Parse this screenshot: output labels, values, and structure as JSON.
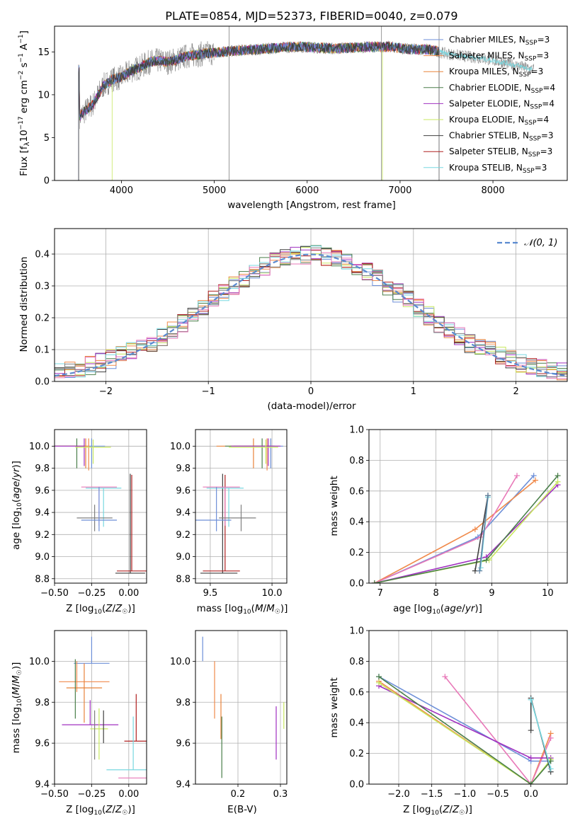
{
  "chart_data": [
    {
      "type": "line",
      "title": "PLATE=0854, MJD=52373, FIBERID=0040, z=0.079",
      "xlabel": "wavelength [Angstrom, rest frame]",
      "ylabel": "Flux [f_λ 10^-17 erg cm^-2 s^-1 A^-1]",
      "xlim": [
        3280,
        8800
      ],
      "ylim": [
        0,
        18
      ],
      "xticks": [
        "4000",
        "5000",
        "6000",
        "7000",
        "8000"
      ],
      "yticks": [
        "0",
        "5",
        "10",
        "15"
      ],
      "legend_position": "right",
      "series": [
        {
          "name": "Chabrier MILES, N_SSP=3"
        },
        {
          "name": "Salpeter MILES, N_SSP=3"
        },
        {
          "name": "Kroupa MILES, N_SSP=3"
        },
        {
          "name": "Chabrier ELODIE, N_SSP=4"
        },
        {
          "name": "Salpeter ELODIE, N_SSP=4"
        },
        {
          "name": "Kroupa ELODIE, N_SSP=4"
        },
        {
          "name": "Chabrier STELIB, N_SSP=3"
        },
        {
          "name": "Salpeter STELIB, N_SSP=3"
        },
        {
          "name": "Kroupa STELIB, N_SSP=3"
        }
      ],
      "spectrum_envelope": {
        "x": [
          3550,
          3700,
          3800,
          3900,
          4000,
          4100,
          4200,
          4300,
          4400,
          4500,
          4700,
          4900,
          5100,
          5300,
          5500,
          5700,
          5900,
          6100,
          6300,
          6500,
          6700,
          6900,
          7100,
          7300,
          7500,
          7700,
          7900,
          8100,
          8300,
          8400
        ],
        "y": [
          7.5,
          9.0,
          11.0,
          11.8,
          12.0,
          12.8,
          13.2,
          13.8,
          14.0,
          13.8,
          14.5,
          14.8,
          15.0,
          15.2,
          15.3,
          15.5,
          15.6,
          15.5,
          15.4,
          15.5,
          15.6,
          15.6,
          15.3,
          15.3,
          14.8,
          14.5,
          14.2,
          13.8,
          13.3,
          13.0
        ]
      }
    },
    {
      "type": "line",
      "xlabel": "(data-model)/error",
      "ylabel": "Normed distribution",
      "xlim": [
        -2.5,
        2.5
      ],
      "ylim": [
        0,
        0.48
      ],
      "xticks": [
        "−2",
        "−1",
        "0",
        "1",
        "2"
      ],
      "yticks": [
        "0.0",
        "0.1",
        "0.2",
        "0.3",
        "0.4"
      ],
      "legend": [
        "𝒩(0, 1)"
      ],
      "legend_position": "top-right",
      "histogram_bin_width": 0.1
    },
    {
      "type": "scatter",
      "xlabel": "Z [log10(Z/Z☉)]",
      "ylabel": "age [log10(age/yr)]",
      "xlim": [
        -0.5,
        0.12
      ],
      "ylim": [
        8.76,
        10.15
      ],
      "xticks": [
        "−0.50",
        "−0.25",
        "0.00"
      ],
      "yticks": [
        "8.8",
        "9.0",
        "9.2",
        "9.4",
        "9.6",
        "9.8",
        "10.0"
      ],
      "points": [
        {
          "x": -0.25,
          "y": 10.0,
          "xerr": [
            0.47,
            0.09
          ],
          "yerr": [
            0.2,
            0.07
          ]
        },
        {
          "x": -0.27,
          "y": 10.0,
          "xerr": [
            0.5,
            0.0
          ],
          "yerr": [
            0.22,
            0.07
          ]
        },
        {
          "x": -0.29,
          "y": 10.0,
          "xerr": [
            0.5,
            0.0
          ],
          "yerr": [
            0.2,
            0.07
          ]
        },
        {
          "x": -0.35,
          "y": 10.0,
          "xerr": [
            0.5,
            0.0
          ],
          "yerr": [
            0.2,
            0.07
          ]
        },
        {
          "x": -0.3,
          "y": 10.0,
          "xerr": [
            0.5,
            0.0
          ],
          "yerr": [
            0.18,
            0.07
          ]
        },
        {
          "x": -0.24,
          "y": 9.99,
          "xerr": [
            0.12,
            0.12
          ],
          "yerr": [
            0.15,
            0.07
          ]
        },
        {
          "x": 0.01,
          "y": 8.85,
          "xerr": [
            0.1,
            0.1
          ],
          "yerr": [
            0.0,
            0.9
          ]
        },
        {
          "x": 0.02,
          "y": 8.87,
          "xerr": [
            0.1,
            0.1
          ],
          "yerr": [
            0.0,
            0.87
          ]
        },
        {
          "x": -0.17,
          "y": 9.62,
          "xerr": [
            0.12,
            0.12
          ],
          "yerr": [
            0.35,
            0.0
          ]
        },
        {
          "x": -0.2,
          "y": 9.63,
          "xerr": [
            0.12,
            0.12
          ],
          "yerr": [
            0.35,
            0.0
          ]
        },
        {
          "x": -0.23,
          "y": 9.35,
          "xerr": [
            0.12,
            0.12
          ],
          "yerr": [
            0.12,
            0.12
          ]
        },
        {
          "x": -0.2,
          "y": 9.33,
          "xerr": [
            0.12,
            0.12
          ],
          "yerr": [
            0.1,
            0.3
          ]
        }
      ]
    },
    {
      "type": "scatter",
      "xlabel": "mass [log10(M/M☉)]",
      "ylabel": "",
      "xlim": [
        9.38,
        10.12
      ],
      "ylim": [
        8.76,
        10.15
      ],
      "xticks": [
        "9.5",
        "10.0"
      ],
      "yticks": [
        "8.8",
        "9.0",
        "9.2",
        "9.4",
        "9.6",
        "9.8",
        "10.0"
      ]
    },
    {
      "type": "line",
      "xlabel": "age [log10(age/yr)]",
      "ylabel": "mass weight",
      "xlim": [
        6.8,
        10.35
      ],
      "ylim": [
        0,
        1.0
      ],
      "xticks": [
        "7",
        "8",
        "9",
        "10"
      ],
      "yticks": [
        "0.0",
        "0.2",
        "0.4",
        "0.6",
        "0.8",
        "1.0"
      ],
      "series": [
        {
          "x": [
            6.9,
            8.75,
            9.75
          ],
          "y": [
            0.0,
            0.3,
            0.7
          ]
        },
        {
          "x": [
            6.9,
            8.7,
            9.78
          ],
          "y": [
            0.0,
            0.35,
            0.67
          ]
        },
        {
          "x": [
            6.9,
            8.8,
            9.45
          ],
          "y": [
            0.0,
            0.3,
            0.7
          ]
        },
        {
          "x": [
            6.9,
            8.9,
            10.18
          ],
          "y": [
            0.0,
            0.17,
            0.64
          ]
        },
        {
          "x": [
            6.9,
            8.95,
            10.18
          ],
          "y": [
            0.0,
            0.15,
            0.66
          ]
        },
        {
          "x": [
            6.9,
            8.9,
            10.18
          ],
          "y": [
            0.0,
            0.15,
            0.7
          ]
        },
        {
          "x": [
            8.7,
            8.93
          ],
          "y": [
            0.08,
            0.57
          ]
        },
        {
          "x": [
            8.8,
            8.93
          ],
          "y": [
            0.1,
            0.56
          ]
        },
        {
          "x": [
            8.78,
            8.93
          ],
          "y": [
            0.08,
            0.57
          ]
        }
      ]
    },
    {
      "type": "scatter",
      "xlabel": "Z [log10(Z/Z☉)]",
      "ylabel": "mass [log10(M/M☉)]",
      "xlim": [
        -0.5,
        0.12
      ],
      "ylim": [
        9.4,
        10.15
      ],
      "xticks": [
        "−0.50",
        "−0.25",
        "0.00"
      ],
      "yticks": [
        "9.4",
        "9.6",
        "9.8",
        "10.0"
      ]
    },
    {
      "type": "scatter",
      "xlabel": "E(B-V)",
      "ylabel": "",
      "xlim": [
        0.1,
        0.315
      ],
      "ylim": [
        9.4,
        10.15
      ],
      "xticks": [
        "0.2",
        "0.3"
      ],
      "yticks": [
        "9.4",
        "9.6",
        "9.8",
        "10.0"
      ],
      "points": [
        {
          "x": 0.117,
          "y": 10.0,
          "yerr": [
            0.0,
            0.12
          ]
        },
        {
          "x": 0.145,
          "y": 9.8,
          "yerr": [
            0.08,
            0.2
          ]
        },
        {
          "x": 0.16,
          "y": 9.62,
          "yerr": [
            0.0,
            0.22
          ]
        },
        {
          "x": 0.162,
          "y": 9.55,
          "yerr": [
            0.12,
            0.18
          ]
        },
        {
          "x": 0.29,
          "y": 9.6,
          "yerr": [
            0.08,
            0.18
          ]
        },
        {
          "x": 0.308,
          "y": 9.75,
          "yerr": [
            0.08,
            0.05
          ]
        }
      ]
    },
    {
      "type": "line",
      "xlabel": "Z [log10(Z/Z☉)]",
      "ylabel": "mass weight",
      "xlim": [
        -2.45,
        0.55
      ],
      "ylim": [
        0,
        1.0
      ],
      "xticks": [
        "−2.0",
        "−1.5",
        "−1.0",
        "−0.5",
        "0.0"
      ],
      "yticks": [
        "0.0",
        "0.2",
        "0.4",
        "0.6",
        "0.8",
        "1.0"
      ],
      "series": [
        {
          "x": [
            -2.3,
            0.0,
            0.3
          ],
          "y": [
            0.7,
            0.15,
            0.15
          ]
        },
        {
          "x": [
            -2.3,
            0.0,
            0.3
          ],
          "y": [
            0.67,
            0.0,
            0.33
          ]
        },
        {
          "x": [
            -1.3,
            0.0,
            0.3
          ],
          "y": [
            0.7,
            0.0,
            0.3
          ]
        },
        {
          "x": [
            -2.3,
            0.0,
            0.3
          ],
          "y": [
            0.64,
            0.17,
            0.17
          ]
        },
        {
          "x": [
            -2.3,
            0.0,
            0.3
          ],
          "y": [
            0.66,
            0.0,
            0.16
          ]
        },
        {
          "x": [
            -2.3,
            0.0,
            0.3
          ],
          "y": [
            0.7,
            0.0,
            0.15
          ]
        },
        {
          "x": [
            0.0,
            0.0,
            0.3
          ],
          "y": [
            0.35,
            0.56,
            0.08
          ]
        },
        {
          "x": [
            0.0,
            0.0,
            0.3
          ],
          "y": [
            0.55,
            0.55,
            0.1
          ]
        }
      ]
    }
  ],
  "colors": {
    "chabrier_miles": "#6d8fd8",
    "salpeter_miles": "#f08a4b",
    "kroupa_miles": "#e8833a",
    "chabrier_elodie": "#4a7f4a",
    "salpeter_elodie": "#a030c0",
    "kroupa_elodie": "#c8e860",
    "chabrier_stelib": "#404040",
    "salpeter_stelib": "#b02020",
    "kroupa_stelib": "#78d8e0",
    "pink": "#e878b8",
    "grid": "#b0b0b0",
    "gaussian": "#5a8ad0"
  }
}
